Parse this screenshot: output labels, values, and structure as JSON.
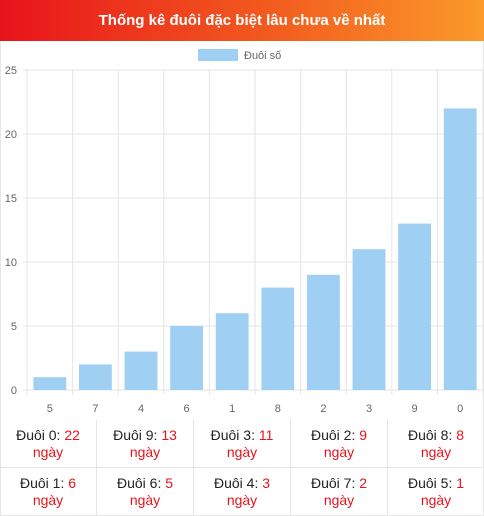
{
  "header": {
    "title": "Thống kê đuôi đặc biệt lâu chưa về nhất"
  },
  "colors": {
    "bar": "#9fcff3",
    "grid": "#e5e5e5",
    "accent": "#e8131b"
  },
  "chart_data": {
    "type": "bar",
    "categories": [
      "5",
      "7",
      "4",
      "6",
      "1",
      "8",
      "2",
      "3",
      "9",
      "0"
    ],
    "series": [
      {
        "name": "Đuôi số",
        "values": [
          1,
          2,
          3,
          5,
          6,
          8,
          9,
          11,
          13,
          22
        ]
      }
    ],
    "yticks": [
      "0",
      "5",
      "10",
      "15",
      "20",
      "25"
    ],
    "ylim": [
      0,
      25
    ],
    "grid": true,
    "legend": "top-center"
  },
  "stats": {
    "unit": "ngày",
    "rows": [
      [
        {
          "label": "Đuôi 0:",
          "value": "22"
        },
        {
          "label": "Đuôi 9:",
          "value": "13"
        },
        {
          "label": "Đuôi 3:",
          "value": "11"
        },
        {
          "label": "Đuôi 2:",
          "value": "9"
        },
        {
          "label": "Đuôi 8:",
          "value": "8"
        }
      ],
      [
        {
          "label": "Đuôi 1:",
          "value": "6"
        },
        {
          "label": "Đuôi 6:",
          "value": "5"
        },
        {
          "label": "Đuôi 4:",
          "value": "3"
        },
        {
          "label": "Đuôi 7:",
          "value": "2"
        },
        {
          "label": "Đuôi 5:",
          "value": "1"
        }
      ]
    ]
  }
}
